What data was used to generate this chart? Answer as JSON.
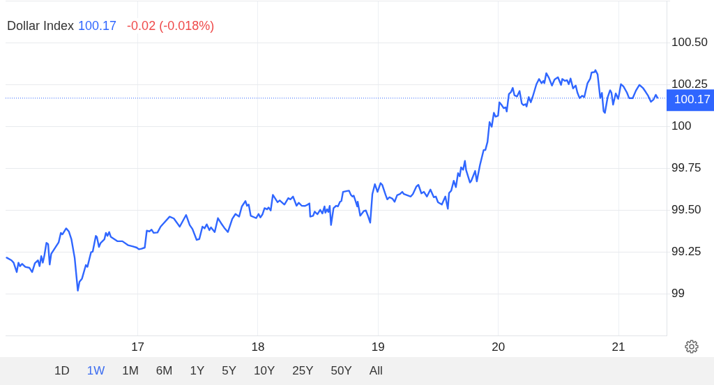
{
  "chart_data": {
    "type": "line",
    "title": "Dollar Index",
    "annotations": [
      "100.17",
      "-0.02 (-0.018%)",
      "1D",
      "1W",
      "1M",
      "6M",
      "1Y",
      "5Y",
      "10Y",
      "25Y",
      "50Y",
      "All"
    ],
    "x": [
      15.909,
      15.949,
      15.967,
      15.993,
      16.007,
      16.02,
      16.038,
      16.064,
      16.099,
      16.121,
      16.144,
      16.17,
      16.183,
      16.197,
      16.21,
      16.223,
      16.24,
      16.254,
      16.267,
      16.28,
      16.342,
      16.36,
      16.373,
      16.404,
      16.426,
      16.448,
      16.475,
      16.501,
      16.515,
      16.536,
      16.568,
      16.581,
      16.611,
      16.625,
      16.651,
      16.66,
      16.677,
      16.691,
      16.722,
      16.735,
      16.748,
      16.762,
      16.775,
      16.832,
      16.872,
      16.921,
      16.96,
      16.991,
      17.009,
      17.031,
      17.058,
      17.075,
      17.097,
      17.115,
      17.132,
      17.164,
      17.19,
      17.212,
      17.265,
      17.3,
      17.349,
      17.402,
      17.432,
      17.455,
      17.49,
      17.512,
      17.538,
      17.556,
      17.574,
      17.596,
      17.609,
      17.64,
      17.667,
      17.693,
      17.72,
      17.75,
      17.786,
      17.813,
      17.843,
      17.866,
      17.896,
      17.909,
      17.923,
      17.94,
      17.985,
      18.005,
      18.02,
      18.038,
      18.055,
      18.077,
      18.088,
      18.106,
      18.124,
      18.163,
      18.181,
      18.22,
      18.253,
      18.27,
      18.292,
      18.321,
      18.339,
      18.364,
      18.392,
      18.414,
      18.428,
      18.435,
      18.459,
      18.472,
      18.495,
      18.518,
      18.536,
      18.554,
      18.561,
      18.575,
      18.586,
      18.597,
      18.608,
      18.629,
      18.651,
      18.665,
      18.683,
      18.694,
      18.708,
      18.74,
      18.758,
      18.773,
      18.787,
      18.797,
      18.812,
      18.826,
      18.83,
      18.851,
      18.88,
      18.898,
      18.916,
      18.934,
      18.952,
      18.973,
      18.995,
      19.02,
      19.034,
      19.062,
      19.076,
      19.094,
      19.119,
      19.137,
      19.158,
      19.182,
      19.201,
      19.214,
      19.271,
      19.289,
      19.318,
      19.335,
      19.36,
      19.381,
      19.406,
      19.435,
      19.463,
      19.48,
      19.498,
      19.53,
      19.559,
      19.58,
      19.59,
      19.608,
      19.629,
      19.647,
      19.665,
      19.679,
      19.69,
      19.707,
      19.722,
      19.732,
      19.764,
      19.775,
      19.807,
      19.821,
      19.847,
      19.878,
      19.892,
      19.91,
      19.927,
      19.945,
      19.963,
      19.977,
      19.998,
      20.009,
      20.025,
      20.045,
      20.061,
      20.07,
      20.088,
      20.106,
      20.12,
      20.134,
      20.156,
      20.177,
      20.195,
      20.21,
      20.227,
      20.235,
      20.253,
      20.27,
      20.285,
      20.317,
      20.339,
      20.36,
      20.375,
      20.383,
      20.399,
      20.421,
      20.446,
      20.468,
      20.496,
      20.522,
      20.532,
      20.554,
      20.572,
      20.586,
      20.601,
      20.622,
      20.644,
      20.658,
      20.676,
      20.697,
      20.715,
      20.742,
      20.765,
      20.776,
      20.801,
      20.808,
      20.826,
      20.848,
      20.862,
      20.876,
      20.887,
      20.909,
      20.93,
      20.941,
      20.955,
      20.977,
      20.998,
      21.02,
      21.041,
      21.07,
      21.088,
      21.118,
      21.145,
      21.174,
      21.203,
      21.226,
      21.244,
      21.27,
      21.292,
      21.31,
      21.324
    ],
    "series": [
      {
        "color": "#2f66ff",
        "values": [
          99.215,
          99.199,
          99.185,
          99.129,
          99.185,
          99.164,
          99.178,
          99.16,
          99.154,
          99.129,
          99.182,
          99.199,
          99.164,
          99.224,
          99.185,
          99.229,
          99.303,
          99.296,
          99.174,
          99.238,
          99.307,
          99.363,
          99.354,
          99.39,
          99.372,
          99.324,
          99.213,
          99.018,
          99.071,
          99.09,
          99.171,
          99.16,
          99.247,
          99.251,
          99.345,
          99.338,
          99.279,
          99.303,
          99.324,
          99.363,
          99.345,
          99.368,
          99.34,
          99.313,
          99.313,
          99.289,
          99.282,
          99.275,
          99.265,
          99.268,
          99.275,
          99.376,
          99.372,
          99.382,
          99.363,
          99.365,
          99.4,
          99.418,
          99.46,
          99.449,
          99.4,
          99.47,
          99.41,
          99.386,
          99.321,
          99.326,
          99.4,
          99.39,
          99.414,
          99.379,
          99.396,
          99.368,
          99.451,
          99.421,
          99.393,
          99.368,
          99.446,
          99.476,
          99.46,
          99.521,
          99.553,
          99.525,
          99.532,
          99.465,
          99.451,
          99.476,
          99.455,
          99.474,
          99.511,
          99.504,
          99.515,
          99.497,
          99.59,
          99.546,
          99.557,
          99.532,
          99.571,
          99.563,
          99.58,
          99.525,
          99.543,
          99.525,
          99.524,
          99.532,
          99.539,
          99.46,
          99.465,
          99.49,
          99.474,
          99.501,
          99.479,
          99.521,
          99.483,
          99.504,
          99.488,
          99.524,
          99.41,
          99.511,
          99.525,
          99.521,
          99.549,
          99.553,
          99.608,
          99.613,
          99.615,
          99.59,
          99.58,
          99.585,
          99.553,
          99.521,
          99.549,
          99.465,
          99.493,
          99.497,
          99.463,
          99.424,
          99.595,
          99.654,
          99.608,
          99.66,
          99.65,
          99.59,
          99.563,
          99.576,
          99.567,
          99.549,
          99.588,
          99.595,
          99.608,
          99.595,
          99.58,
          99.595,
          99.64,
          99.65,
          99.599,
          99.608,
          99.58,
          99.622,
          99.576,
          99.58,
          99.546,
          99.532,
          99.58,
          99.507,
          99.601,
          99.615,
          99.674,
          99.636,
          99.72,
          99.701,
          99.754,
          99.74,
          99.793,
          99.738,
          99.664,
          99.674,
          99.733,
          99.671,
          99.768,
          99.858,
          99.858,
          99.907,
          100.025,
          99.997,
          100.08,
          100.057,
          100.063,
          100.143,
          100.129,
          100.108,
          100.113,
          100.088,
          100.192,
          100.205,
          100.229,
          100.185,
          100.178,
          100.21,
          100.136,
          100.126,
          100.132,
          100.118,
          100.174,
          100.143,
          100.174,
          100.251,
          100.282,
          100.257,
          100.271,
          100.257,
          100.317,
          100.289,
          100.243,
          100.279,
          100.293,
          100.247,
          100.282,
          100.271,
          100.275,
          100.251,
          100.285,
          100.226,
          100.243,
          100.201,
          100.168,
          100.182,
          100.174,
          100.257,
          100.285,
          100.321,
          100.324,
          100.335,
          100.31,
          100.168,
          100.199,
          100.09,
          100.08,
          100.171,
          100.215,
          100.201,
          100.129,
          100.196,
          100.164,
          100.251,
          100.238,
          100.201,
          100.168,
          100.168,
          100.213,
          100.247,
          100.229,
          100.205,
          100.185,
          100.146,
          100.16,
          100.188,
          100.17
        ]
      }
    ],
    "xlim": [
      15.9,
      21.4
    ],
    "xticks": [
      17,
      18,
      19,
      20,
      21
    ],
    "ylim": [
      98.75,
      100.75
    ],
    "yticks": [
      99,
      99.25,
      {
        "value": 99.5,
        "label": "99.50"
      },
      99.75,
      100,
      100.25,
      {
        "value": 100.5,
        "label": "100.50"
      },
      {
        "value": 100.75,
        "label": null
      }
    ],
    "ref_lines": [
      {
        "axis": "y",
        "value": 100.17,
        "label": "100.17",
        "color": "#2f66ff",
        "line_style": "dotted"
      }
    ],
    "grid": true
  }
}
